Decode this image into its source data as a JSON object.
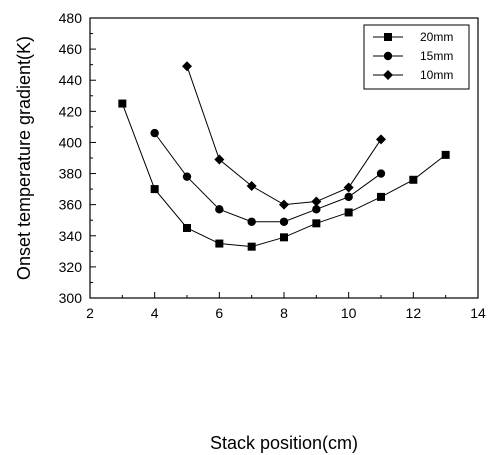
{
  "chart_data": {
    "type": "line",
    "xlabel": "Stack position(cm)",
    "ylabel": "Onset temperature gradient(K)",
    "xlim": [
      2,
      14
    ],
    "ylim": [
      300,
      480
    ],
    "xticks": [
      2,
      4,
      6,
      8,
      10,
      12,
      14
    ],
    "yticks": [
      300,
      320,
      340,
      360,
      380,
      400,
      420,
      440,
      460,
      480
    ],
    "grid": false,
    "legend_position": "top-right",
    "series": [
      {
        "name": "20mm",
        "marker": "square",
        "x": [
          3,
          4,
          5,
          6,
          7,
          8,
          9,
          10,
          11,
          12,
          13
        ],
        "values": [
          425,
          370,
          345,
          335,
          333,
          339,
          348,
          355,
          365,
          376,
          392
        ]
      },
      {
        "name": "15mm",
        "marker": "circle",
        "x": [
          4,
          5,
          6,
          7,
          8,
          9,
          10,
          11
        ],
        "values": [
          406,
          378,
          357,
          349,
          349,
          357,
          365,
          380
        ]
      },
      {
        "name": "10mm",
        "marker": "diamond",
        "x": [
          5,
          6,
          7,
          8,
          9,
          10,
          11
        ],
        "values": [
          449,
          389,
          372,
          360,
          362,
          371,
          402
        ]
      }
    ]
  }
}
